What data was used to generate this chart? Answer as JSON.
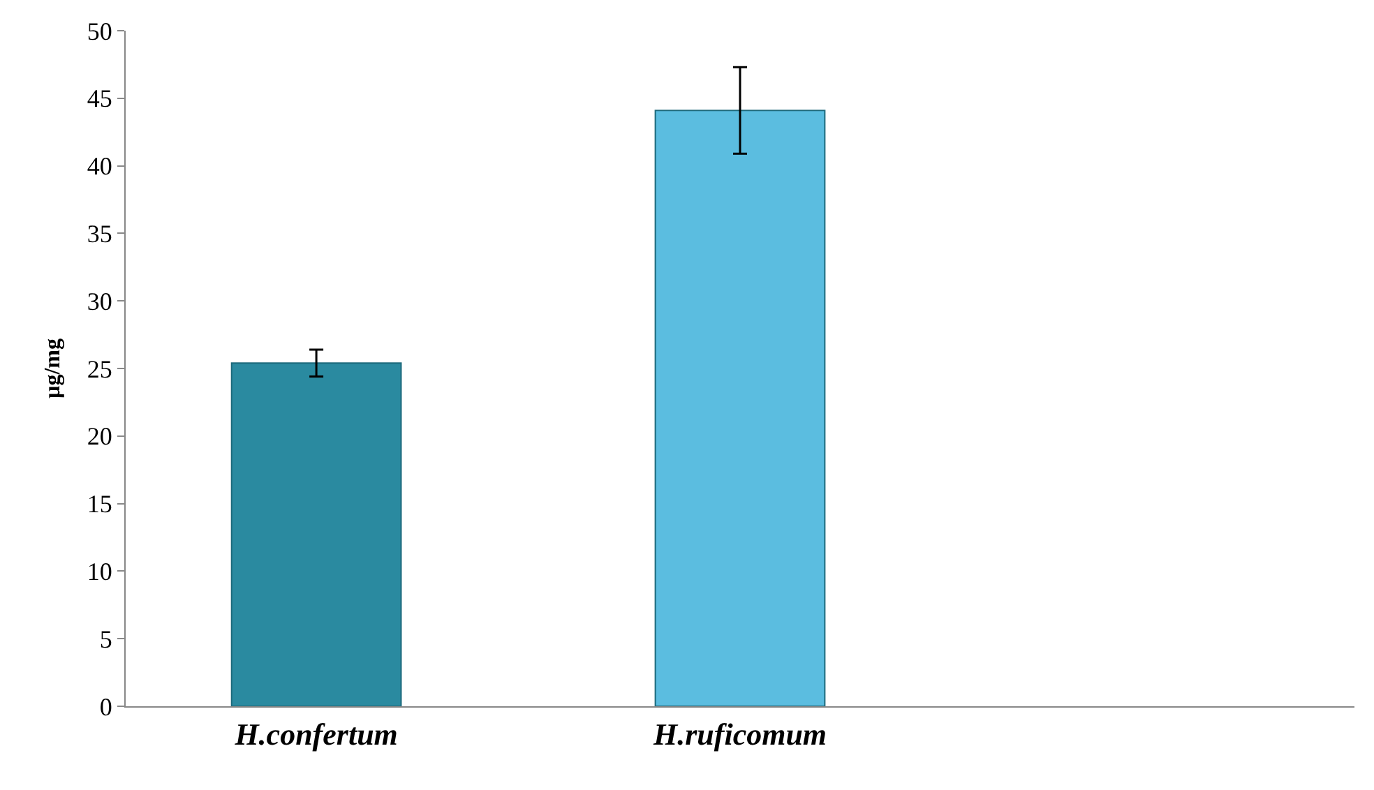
{
  "chart_data": {
    "type": "bar",
    "ylabel": "µg/mg",
    "categories": [
      "H.confertum",
      "H.ruficomum",
      null
    ],
    "values": [
      25.4,
      44.1,
      null
    ],
    "errors": [
      1.0,
      3.2,
      null
    ],
    "colors": [
      "#2a8aa0",
      "#5bbde0",
      null
    ],
    "ylim": [
      0,
      50
    ],
    "yticks": [
      0,
      5,
      10,
      15,
      20,
      25,
      30,
      35,
      40,
      45,
      50
    ]
  }
}
